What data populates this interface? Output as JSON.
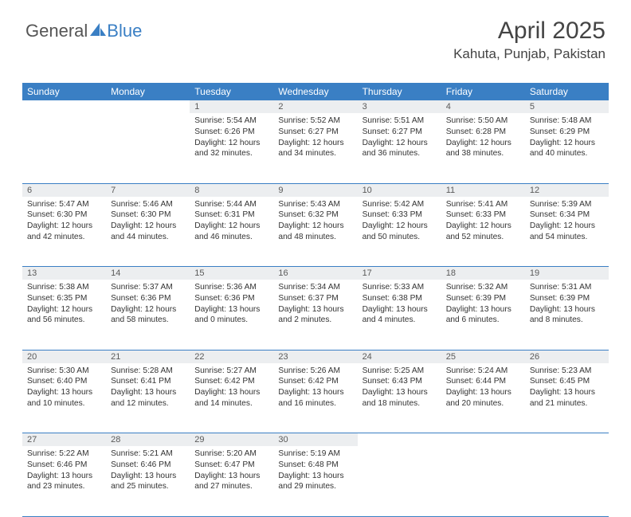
{
  "logo": {
    "textA": "General",
    "textB": "Blue"
  },
  "header": {
    "monthTitle": "April 2025",
    "location": "Kahuta, Punjab, Pakistan"
  },
  "colors": {
    "accent": "#3a7fc4",
    "dayHeaderBg": "#eceef0",
    "text": "#333333",
    "bg": "#ffffff"
  },
  "dayNames": [
    "Sunday",
    "Monday",
    "Tuesday",
    "Wednesday",
    "Thursday",
    "Friday",
    "Saturday"
  ],
  "weeks": [
    {
      "nums": [
        "",
        "",
        "1",
        "2",
        "3",
        "4",
        "5"
      ],
      "cells": [
        null,
        null,
        {
          "sunrise": "Sunrise: 5:54 AM",
          "sunset": "Sunset: 6:26 PM",
          "day1": "Daylight: 12 hours",
          "day2": "and 32 minutes."
        },
        {
          "sunrise": "Sunrise: 5:52 AM",
          "sunset": "Sunset: 6:27 PM",
          "day1": "Daylight: 12 hours",
          "day2": "and 34 minutes."
        },
        {
          "sunrise": "Sunrise: 5:51 AM",
          "sunset": "Sunset: 6:27 PM",
          "day1": "Daylight: 12 hours",
          "day2": "and 36 minutes."
        },
        {
          "sunrise": "Sunrise: 5:50 AM",
          "sunset": "Sunset: 6:28 PM",
          "day1": "Daylight: 12 hours",
          "day2": "and 38 minutes."
        },
        {
          "sunrise": "Sunrise: 5:48 AM",
          "sunset": "Sunset: 6:29 PM",
          "day1": "Daylight: 12 hours",
          "day2": "and 40 minutes."
        }
      ]
    },
    {
      "nums": [
        "6",
        "7",
        "8",
        "9",
        "10",
        "11",
        "12"
      ],
      "cells": [
        {
          "sunrise": "Sunrise: 5:47 AM",
          "sunset": "Sunset: 6:30 PM",
          "day1": "Daylight: 12 hours",
          "day2": "and 42 minutes."
        },
        {
          "sunrise": "Sunrise: 5:46 AM",
          "sunset": "Sunset: 6:30 PM",
          "day1": "Daylight: 12 hours",
          "day2": "and 44 minutes."
        },
        {
          "sunrise": "Sunrise: 5:44 AM",
          "sunset": "Sunset: 6:31 PM",
          "day1": "Daylight: 12 hours",
          "day2": "and 46 minutes."
        },
        {
          "sunrise": "Sunrise: 5:43 AM",
          "sunset": "Sunset: 6:32 PM",
          "day1": "Daylight: 12 hours",
          "day2": "and 48 minutes."
        },
        {
          "sunrise": "Sunrise: 5:42 AM",
          "sunset": "Sunset: 6:33 PM",
          "day1": "Daylight: 12 hours",
          "day2": "and 50 minutes."
        },
        {
          "sunrise": "Sunrise: 5:41 AM",
          "sunset": "Sunset: 6:33 PM",
          "day1": "Daylight: 12 hours",
          "day2": "and 52 minutes."
        },
        {
          "sunrise": "Sunrise: 5:39 AM",
          "sunset": "Sunset: 6:34 PM",
          "day1": "Daylight: 12 hours",
          "day2": "and 54 minutes."
        }
      ]
    },
    {
      "nums": [
        "13",
        "14",
        "15",
        "16",
        "17",
        "18",
        "19"
      ],
      "cells": [
        {
          "sunrise": "Sunrise: 5:38 AM",
          "sunset": "Sunset: 6:35 PM",
          "day1": "Daylight: 12 hours",
          "day2": "and 56 minutes."
        },
        {
          "sunrise": "Sunrise: 5:37 AM",
          "sunset": "Sunset: 6:36 PM",
          "day1": "Daylight: 12 hours",
          "day2": "and 58 minutes."
        },
        {
          "sunrise": "Sunrise: 5:36 AM",
          "sunset": "Sunset: 6:36 PM",
          "day1": "Daylight: 13 hours",
          "day2": "and 0 minutes."
        },
        {
          "sunrise": "Sunrise: 5:34 AM",
          "sunset": "Sunset: 6:37 PM",
          "day1": "Daylight: 13 hours",
          "day2": "and 2 minutes."
        },
        {
          "sunrise": "Sunrise: 5:33 AM",
          "sunset": "Sunset: 6:38 PM",
          "day1": "Daylight: 13 hours",
          "day2": "and 4 minutes."
        },
        {
          "sunrise": "Sunrise: 5:32 AM",
          "sunset": "Sunset: 6:39 PM",
          "day1": "Daylight: 13 hours",
          "day2": "and 6 minutes."
        },
        {
          "sunrise": "Sunrise: 5:31 AM",
          "sunset": "Sunset: 6:39 PM",
          "day1": "Daylight: 13 hours",
          "day2": "and 8 minutes."
        }
      ]
    },
    {
      "nums": [
        "20",
        "21",
        "22",
        "23",
        "24",
        "25",
        "26"
      ],
      "cells": [
        {
          "sunrise": "Sunrise: 5:30 AM",
          "sunset": "Sunset: 6:40 PM",
          "day1": "Daylight: 13 hours",
          "day2": "and 10 minutes."
        },
        {
          "sunrise": "Sunrise: 5:28 AM",
          "sunset": "Sunset: 6:41 PM",
          "day1": "Daylight: 13 hours",
          "day2": "and 12 minutes."
        },
        {
          "sunrise": "Sunrise: 5:27 AM",
          "sunset": "Sunset: 6:42 PM",
          "day1": "Daylight: 13 hours",
          "day2": "and 14 minutes."
        },
        {
          "sunrise": "Sunrise: 5:26 AM",
          "sunset": "Sunset: 6:42 PM",
          "day1": "Daylight: 13 hours",
          "day2": "and 16 minutes."
        },
        {
          "sunrise": "Sunrise: 5:25 AM",
          "sunset": "Sunset: 6:43 PM",
          "day1": "Daylight: 13 hours",
          "day2": "and 18 minutes."
        },
        {
          "sunrise": "Sunrise: 5:24 AM",
          "sunset": "Sunset: 6:44 PM",
          "day1": "Daylight: 13 hours",
          "day2": "and 20 minutes."
        },
        {
          "sunrise": "Sunrise: 5:23 AM",
          "sunset": "Sunset: 6:45 PM",
          "day1": "Daylight: 13 hours",
          "day2": "and 21 minutes."
        }
      ]
    },
    {
      "nums": [
        "27",
        "28",
        "29",
        "30",
        "",
        "",
        ""
      ],
      "cells": [
        {
          "sunrise": "Sunrise: 5:22 AM",
          "sunset": "Sunset: 6:46 PM",
          "day1": "Daylight: 13 hours",
          "day2": "and 23 minutes."
        },
        {
          "sunrise": "Sunrise: 5:21 AM",
          "sunset": "Sunset: 6:46 PM",
          "day1": "Daylight: 13 hours",
          "day2": "and 25 minutes."
        },
        {
          "sunrise": "Sunrise: 5:20 AM",
          "sunset": "Sunset: 6:47 PM",
          "day1": "Daylight: 13 hours",
          "day2": "and 27 minutes."
        },
        {
          "sunrise": "Sunrise: 5:19 AM",
          "sunset": "Sunset: 6:48 PM",
          "day1": "Daylight: 13 hours",
          "day2": "and 29 minutes."
        },
        null,
        null,
        null
      ]
    }
  ]
}
